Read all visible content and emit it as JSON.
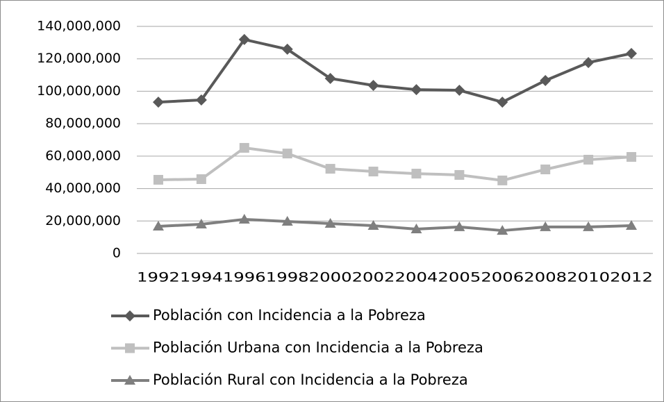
{
  "chart_data": {
    "type": "line",
    "categories": [
      "1992",
      "1994",
      "1996",
      "1998",
      "2000",
      "2002",
      "2004",
      "2005",
      "2006",
      "2008",
      "2010",
      "2012"
    ],
    "series": [
      {
        "name": "Población con Incidencia a la Pobreza",
        "color": "#595959",
        "marker": "diamond",
        "values": [
          93300000,
          94600000,
          131900000,
          125900000,
          107900000,
          103600000,
          101000000,
          100600000,
          93300000,
          106600000,
          117700000,
          123300000
        ]
      },
      {
        "name": "Población Urbana con Incidencia a la Pobreza",
        "color": "#bfbfbf",
        "marker": "square",
        "values": [
          45400000,
          45800000,
          65100000,
          61600000,
          52200000,
          50500000,
          49200000,
          48400000,
          45000000,
          51800000,
          57800000,
          59500000
        ]
      },
      {
        "name": "Población Rural con Incidencia a la Pobreza",
        "color": "#7f7f7f",
        "marker": "triangle",
        "values": [
          16700000,
          18000000,
          21000000,
          19700000,
          18400000,
          17100000,
          15000000,
          16300000,
          14100000,
          16300000,
          16300000,
          17100000
        ]
      }
    ],
    "ylim": [
      0,
      140000000
    ],
    "yticks": [
      0,
      {
        "value": 20000000,
        "label": "20,000,000"
      },
      {
        "value": 40000000,
        "label": "40,000,000"
      },
      {
        "value": 60000000,
        "label": "60,000,000"
      },
      {
        "value": 80000000,
        "label": "80,000,000"
      },
      {
        "value": 100000000,
        "label": "100,000,000"
      },
      {
        "value": 120000000,
        "label": "120,000,000"
      },
      {
        "value": 140000000,
        "label": "140,000,000"
      }
    ],
    "grid": true,
    "legend": "bottom"
  }
}
